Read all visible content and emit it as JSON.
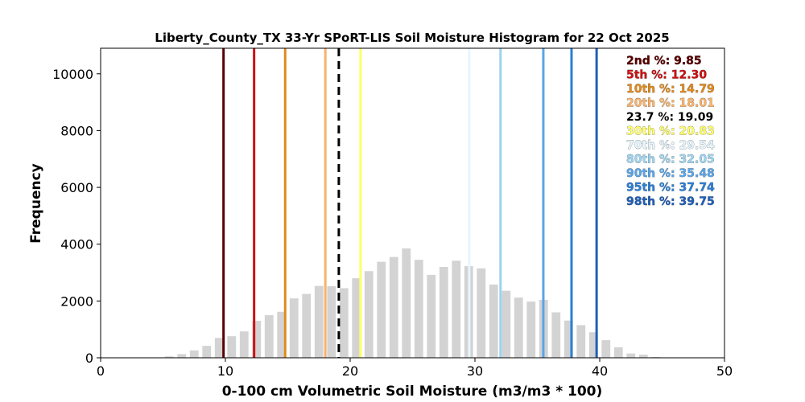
{
  "chart_data": {
    "type": "bar",
    "title": "Liberty_County_TX 33-Yr SPoRT-LIS Soil Moisture Histogram for 22 Oct 2025",
    "xlabel": "0-100 cm Volumetric Soil Moisture (m3/m3 * 100)",
    "ylabel": "Frequency",
    "xlim": [
      0,
      50
    ],
    "ylim": [
      0,
      10900
    ],
    "xticks": [
      "0",
      "10",
      "20",
      "30",
      "40",
      "50"
    ],
    "yticks": [
      "0",
      "2000",
      "4000",
      "6000",
      "8000",
      "10000"
    ],
    "bar_color": "#d3d3d3",
    "bars": {
      "x": [
        5.5,
        6.5,
        7.5,
        8.5,
        9.5,
        10.5,
        11.5,
        12.5,
        13.5,
        14.5,
        15.5,
        16.5,
        17.5,
        18.5,
        19.5,
        20.5,
        21.5,
        22.5,
        23.5,
        24.5,
        25.5,
        26.5,
        27.5,
        28.5,
        29.5,
        30.5,
        31.5,
        32.5,
        33.5,
        34.5,
        35.5,
        36.5,
        37.5,
        38.5,
        39.5,
        40.5,
        41.5,
        42.5,
        43.5,
        44.5
      ],
      "values": [
        50,
        130,
        260,
        420,
        700,
        760,
        930,
        1300,
        1500,
        1620,
        2090,
        2250,
        2530,
        2520,
        2450,
        2800,
        3050,
        3380,
        3550,
        3850,
        3450,
        2920,
        3200,
        3420,
        3230,
        3150,
        2580,
        2360,
        2120,
        1980,
        2040,
        1600,
        1310,
        1150,
        900,
        620,
        370,
        150,
        110,
        30
      ]
    },
    "percentile_lines": [
      {
        "label": "2nd %: 9.85",
        "value": 9.85,
        "color": "#5a0000",
        "dashed": false
      },
      {
        "label": "5th %: 12.30",
        "value": 12.3,
        "color": "#cc1111",
        "dashed": false
      },
      {
        "label": "10th %: 14.79",
        "value": 14.79,
        "color": "#e08a1e",
        "dashed": false
      },
      {
        "label": "20th %: 18.01",
        "value": 18.01,
        "color": "#f8b26a",
        "dashed": false
      },
      {
        "label": "23.7 %: 19.09",
        "value": 19.09,
        "color": "#000000",
        "dashed": true
      },
      {
        "label": "30th %: 20.83",
        "value": 20.83,
        "color": "#ffff66",
        "dashed": false
      },
      {
        "label": "70th %: 29.54",
        "value": 29.54,
        "color": "#e6f6ff",
        "dashed": false
      },
      {
        "label": "80th %: 32.05",
        "value": 32.05,
        "color": "#9dd4ef",
        "dashed": false
      },
      {
        "label": "90th %: 35.48",
        "value": 35.48,
        "color": "#5aa5e8",
        "dashed": false
      },
      {
        "label": "95th %: 37.74",
        "value": 37.74,
        "color": "#2b7fd6",
        "dashed": false
      },
      {
        "label": "98th %: 39.75",
        "value": 39.75,
        "color": "#1f5fb8",
        "dashed": false
      }
    ]
  }
}
